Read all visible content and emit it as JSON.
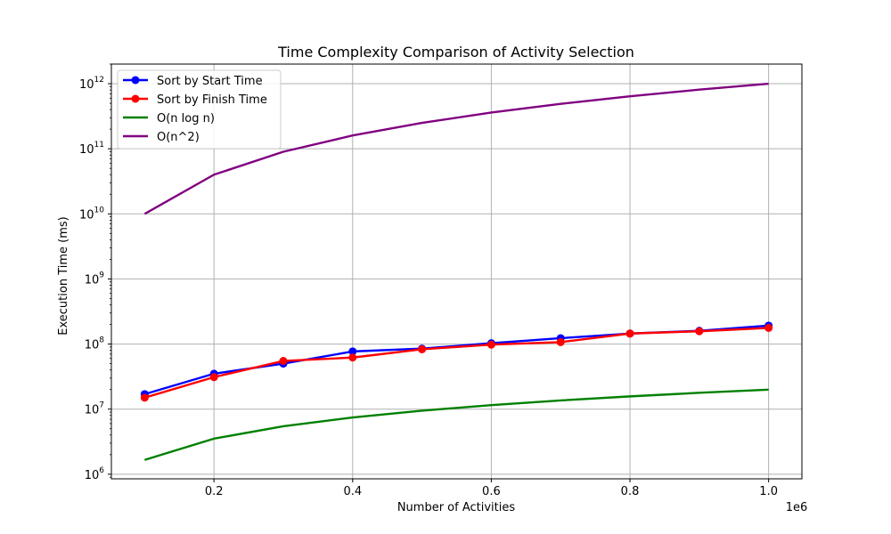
{
  "chart_data": {
    "type": "line",
    "title": "Time Complexity Comparison of Activity Selection",
    "xlabel": "Number of Activities",
    "ylabel": "Execution Time (ms)",
    "x_offset_label": "1e6",
    "yscale": "log",
    "grid": true,
    "legend_position": "top-left",
    "xlim": [
      52000,
      1048000
    ],
    "ylim": [
      850000,
      2000000000000
    ],
    "x_ticks": [
      200000,
      400000,
      600000,
      800000,
      1000000
    ],
    "x_tick_labels": [
      "0.2",
      "0.4",
      "0.6",
      "0.8",
      "1.0"
    ],
    "y_ticks": [
      1000000,
      10000000,
      100000000,
      1000000000,
      10000000000,
      100000000000,
      1000000000000
    ],
    "y_tick_labels": [
      {
        "base": "10",
        "exp": "6"
      },
      {
        "base": "10",
        "exp": "7"
      },
      {
        "base": "10",
        "exp": "8"
      },
      {
        "base": "10",
        "exp": "9"
      },
      {
        "base": "10",
        "exp": "10"
      },
      {
        "base": "10",
        "exp": "11"
      },
      {
        "base": "10",
        "exp": "12"
      }
    ],
    "x": [
      100000,
      200000,
      300000,
      400000,
      500000,
      600000,
      700000,
      800000,
      900000,
      1000000
    ],
    "series": [
      {
        "name": "Sort by Start Time",
        "color": "#0000ff",
        "marker": "circle",
        "values": [
          17000000,
          35000000,
          50000000,
          77000000,
          85000000,
          103000000,
          123000000,
          145000000,
          160000000,
          192000000
        ]
      },
      {
        "name": "Sort by Finish Time",
        "color": "#ff0000",
        "marker": "circle",
        "values": [
          15000000,
          31000000,
          55000000,
          62000000,
          83000000,
          98000000,
          107000000,
          145000000,
          157000000,
          177000000
        ]
      },
      {
        "name": "O(n log n)",
        "color": "#008000",
        "marker": "none",
        "values": [
          1661000,
          3522000,
          5458000,
          7443000,
          9466000,
          11519000,
          13597000,
          15697000,
          17815000,
          19932000
        ]
      },
      {
        "name": "O(n^2)",
        "color": "#800080",
        "marker": "none",
        "values": [
          10000000000,
          40000000000,
          90000000000,
          160000000000,
          250000000000,
          360000000000,
          490000000000,
          640000000000,
          810000000000,
          1000000000000
        ]
      }
    ]
  }
}
